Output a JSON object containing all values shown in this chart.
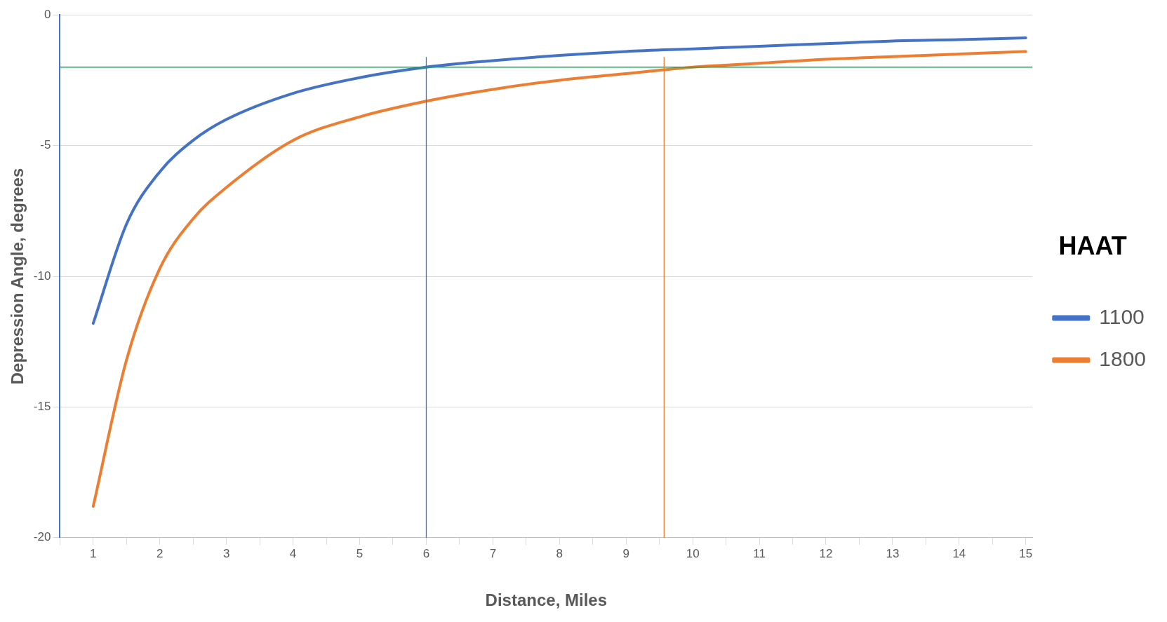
{
  "chart_data": {
    "type": "line",
    "xlabel": "Distance, Miles",
    "ylabel": "Depression Angle, degrees",
    "legend_title": "HAAT",
    "x": [
      1,
      1.5,
      2,
      2.5,
      3,
      4,
      5,
      6,
      7,
      8,
      9,
      10,
      11,
      12,
      13,
      14,
      15
    ],
    "series": [
      {
        "name": "1100",
        "color": "#4472c4",
        "values": [
          -11.8,
          -8.0,
          -6.0,
          -4.8,
          -4.0,
          -3.0,
          -2.4,
          -2.0,
          -1.75,
          -1.55,
          -1.4,
          -1.3,
          -1.2,
          -1.1,
          -1.0,
          -0.95,
          -0.88
        ]
      },
      {
        "name": "1800",
        "color": "#ed7d31",
        "values": [
          -18.8,
          -13.2,
          -9.7,
          -7.8,
          -6.6,
          -4.8,
          -3.9,
          -3.3,
          -2.85,
          -2.5,
          -2.25,
          -2.0,
          -1.85,
          -1.7,
          -1.6,
          -1.5,
          -1.4
        ]
      }
    ],
    "xlim": [
      0.5,
      15.1
    ],
    "xticks": [
      {
        "value": 0.5,
        "label": null
      },
      1,
      {
        "value": 1.5,
        "label": null
      },
      2,
      {
        "value": 2.5,
        "label": null
      },
      3,
      {
        "value": 3.5,
        "label": null
      },
      4,
      {
        "value": 4.5,
        "label": null
      },
      5,
      {
        "value": 5.5,
        "label": null
      },
      6,
      {
        "value": 6.5,
        "label": null
      },
      7,
      {
        "value": 7.5,
        "label": null
      },
      8,
      {
        "value": 8.5,
        "label": null
      },
      9,
      {
        "value": 9.5,
        "label": null
      },
      10,
      {
        "value": 10.5,
        "label": null
      },
      11,
      {
        "value": 11.5,
        "label": null
      },
      12,
      {
        "value": 12.5,
        "label": null
      },
      13,
      {
        "value": 13.5,
        "label": null
      },
      14,
      {
        "value": 14.5,
        "label": null
      },
      15
    ],
    "ylim": [
      -20,
      0
    ],
    "yticks": [
      -20,
      -15,
      -10,
      -5,
      0
    ],
    "grid": "y",
    "legend": "right",
    "marker": "none",
    "line_style": "solid",
    "ref_lines": [
      {
        "axis": "y",
        "value": -2,
        "color": "#00b050"
      },
      {
        "axis": "x",
        "value": 6,
        "color": "#4472c4"
      },
      {
        "axis": "x",
        "value": 9.57,
        "color": "#ed7d31"
      }
    ]
  }
}
